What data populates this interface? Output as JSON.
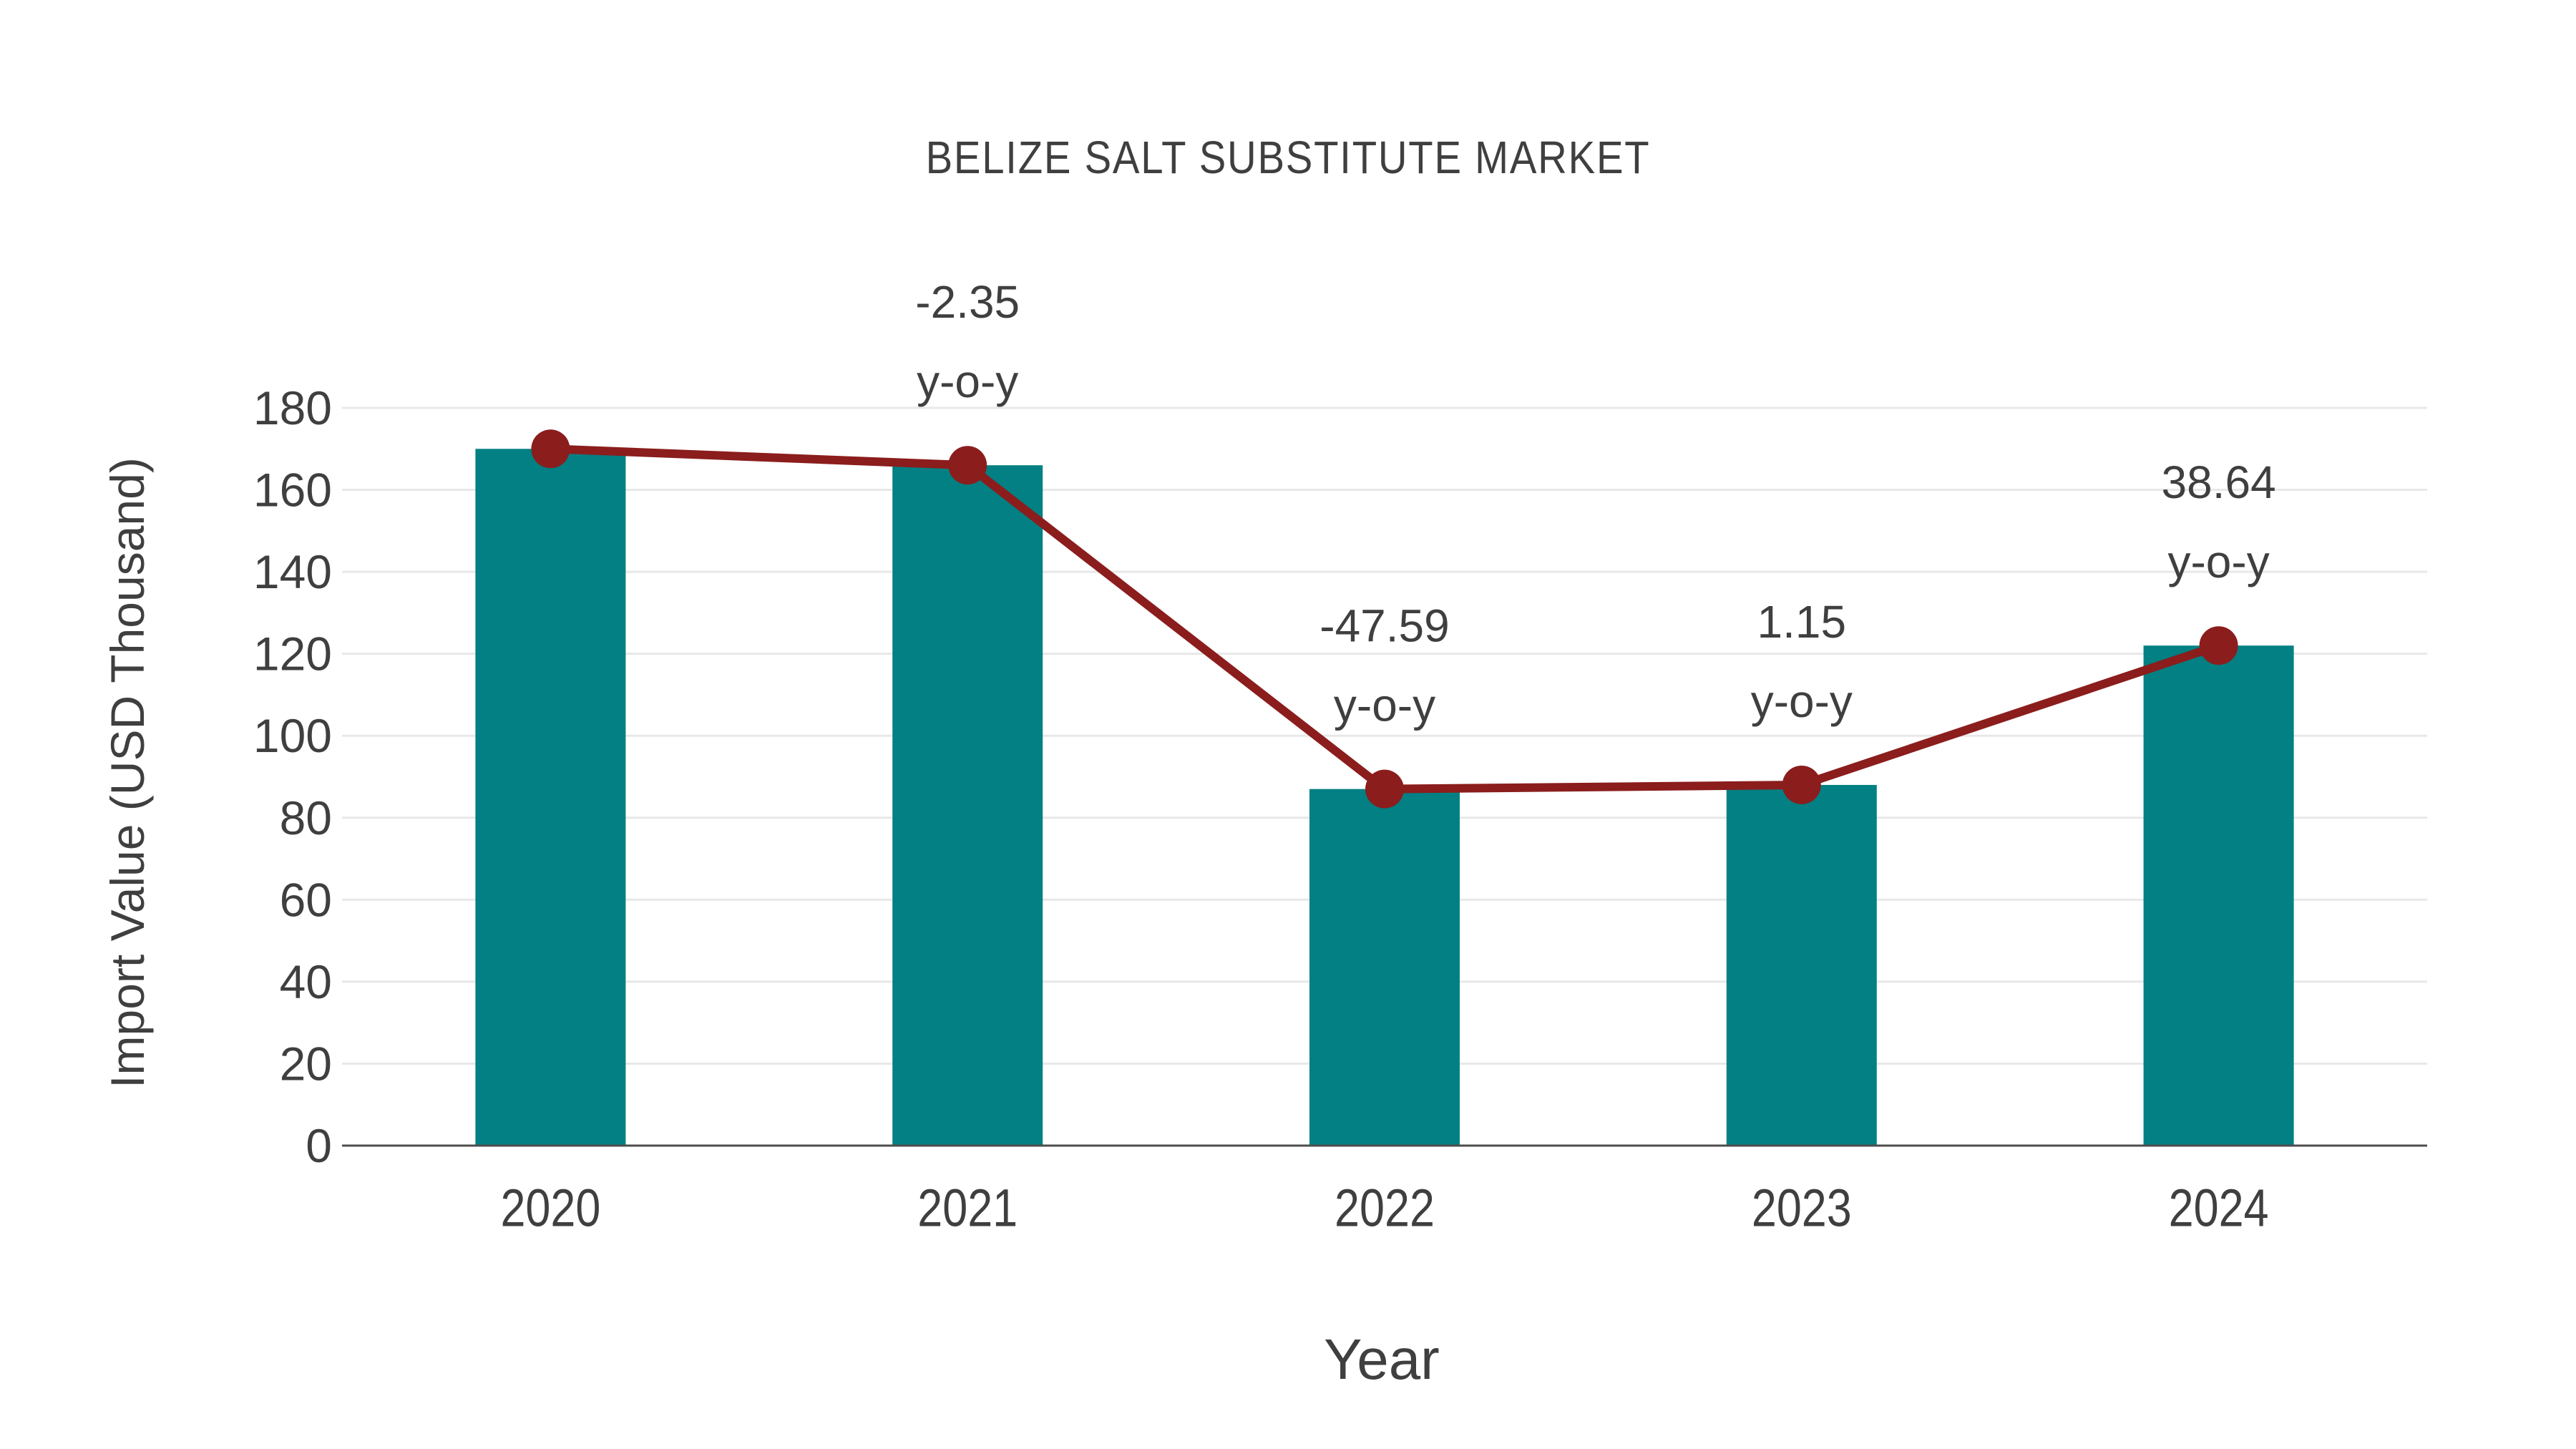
{
  "chart_data": {
    "type": "bar",
    "title": "BELIZE SALT SUBSTITUTE MARKET",
    "xlabel": "Year",
    "ylabel": "Import Value (USD Thousand)",
    "categories": [
      "2020",
      "2021",
      "2022",
      "2023",
      "2024"
    ],
    "series": [
      {
        "name": "import-value-bars",
        "type": "bar",
        "values": [
          170,
          166,
          87,
          88,
          122
        ]
      },
      {
        "name": "import-value-line",
        "type": "line",
        "values": [
          170,
          166,
          87,
          88,
          122
        ]
      }
    ],
    "annotations": [
      {
        "category": "2021",
        "line1": "-2.35",
        "line2": "y-o-y"
      },
      {
        "category": "2022",
        "line1": "-47.59",
        "line2": "y-o-y"
      },
      {
        "category": "2023",
        "line1": "1.15",
        "line2": "y-o-y"
      },
      {
        "category": "2024",
        "line1": "38.64",
        "line2": "y-o-y"
      }
    ],
    "ylim": [
      0,
      180
    ],
    "ytick_step": 20,
    "grid": true,
    "legend": false,
    "colors": {
      "bar": "#028083",
      "line": "#8B1D1D",
      "marker": "#8B1D1D",
      "text": "#3F3F3F",
      "grid": "#E8E8E8",
      "axis": "#4D4D4D",
      "background": "#FFFFFF"
    }
  }
}
